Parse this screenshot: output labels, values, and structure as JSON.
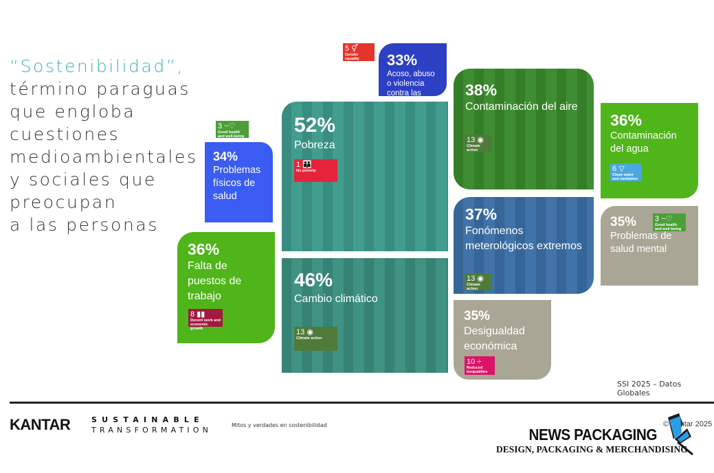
{
  "headline": {
    "highlight": "“Sostenibilidad”,",
    "lines": [
      "término paraguas",
      "que engloba",
      "cuestiones",
      "medioambientales",
      "y sociales que",
      "preocupan",
      "a las personas"
    ]
  },
  "tiles": [
    {
      "pct": "33%",
      "label": "Acoso, abuso o violencia contra las mujeres",
      "color": "#2d40c4",
      "badge": {
        "num": "5",
        "icon": "gender-symbol-icon",
        "text": "Gender equality",
        "color": "#e5342a"
      }
    },
    {
      "pct": "34%",
      "label": "Problemas físicos de salud",
      "color": "#3a5cf2",
      "badge": {
        "num": "3",
        "icon": "heartbeat-icon",
        "text": "Good health and well-being",
        "color": "#4c9f38"
      }
    },
    {
      "pct": "52%",
      "label": "Pobreza",
      "color": "#3e9a8c",
      "badge": {
        "num": "1",
        "icon": "family-icon",
        "text": "No poverty",
        "color": "#e5243b"
      }
    },
    {
      "pct": "38%",
      "label": "Contaminación del aire",
      "color": "#3a8a2c",
      "badge": {
        "num": "13",
        "icon": "eye-globe-icon",
        "text": "Climate action",
        "color": "#4f7a3a"
      }
    },
    {
      "pct": "36%",
      "label": "Contaminación del agua",
      "color": "#4fb51a",
      "badge": {
        "num": "6",
        "icon": "water-drop-icon",
        "text": "Clean water and sanitation",
        "color": "#4aa8dc"
      }
    },
    {
      "pct": "37%",
      "label": "Fonómenos meterológicos extremos",
      "color": "#3b6fa6",
      "badge": {
        "num": "13",
        "icon": "eye-globe-icon",
        "text": "Climate action",
        "color": "#4f7a3a"
      }
    },
    {
      "pct": "35%",
      "label": "Problemas de salud mental",
      "color": "#a9a695",
      "badge": {
        "num": "3",
        "icon": "heartbeat-icon",
        "text": "Good health and well-being",
        "color": "#4c9f38"
      }
    },
    {
      "pct": "36%",
      "label": "Falta de puestos de trabajo",
      "color": "#4fb51a",
      "badge": {
        "num": "8",
        "icon": "growth-chart-icon",
        "text": "Decent work and economic growth",
        "color": "#a21942"
      }
    },
    {
      "pct": "46%",
      "label": "Cambio climático",
      "color": "#3b8f80",
      "badge": {
        "num": "13",
        "icon": "eye-globe-icon",
        "text": "Climate action",
        "color": "#4f7a3a"
      }
    },
    {
      "pct": "35%",
      "label": "Desigualdad económica",
      "color": "#a9a695",
      "badge": {
        "num": "10",
        "icon": "equality-icon",
        "text": "Reduced inequalities",
        "color": "#dd1367"
      }
    }
  ],
  "source": "SSI 2025 – Datos Globales",
  "footer": {
    "brand": "KANTAR",
    "program_line1": "SUSTAINABLE",
    "program_line2": "TRANSFORMATION",
    "subtitle": "Mitos y verdades en sostenibilidad",
    "copyright": "© Kantar 2025"
  },
  "watermark": {
    "title": "NEWS PACKAGING",
    "tagline": "DESIGN, PACKAGING & MERCHANDISING"
  }
}
